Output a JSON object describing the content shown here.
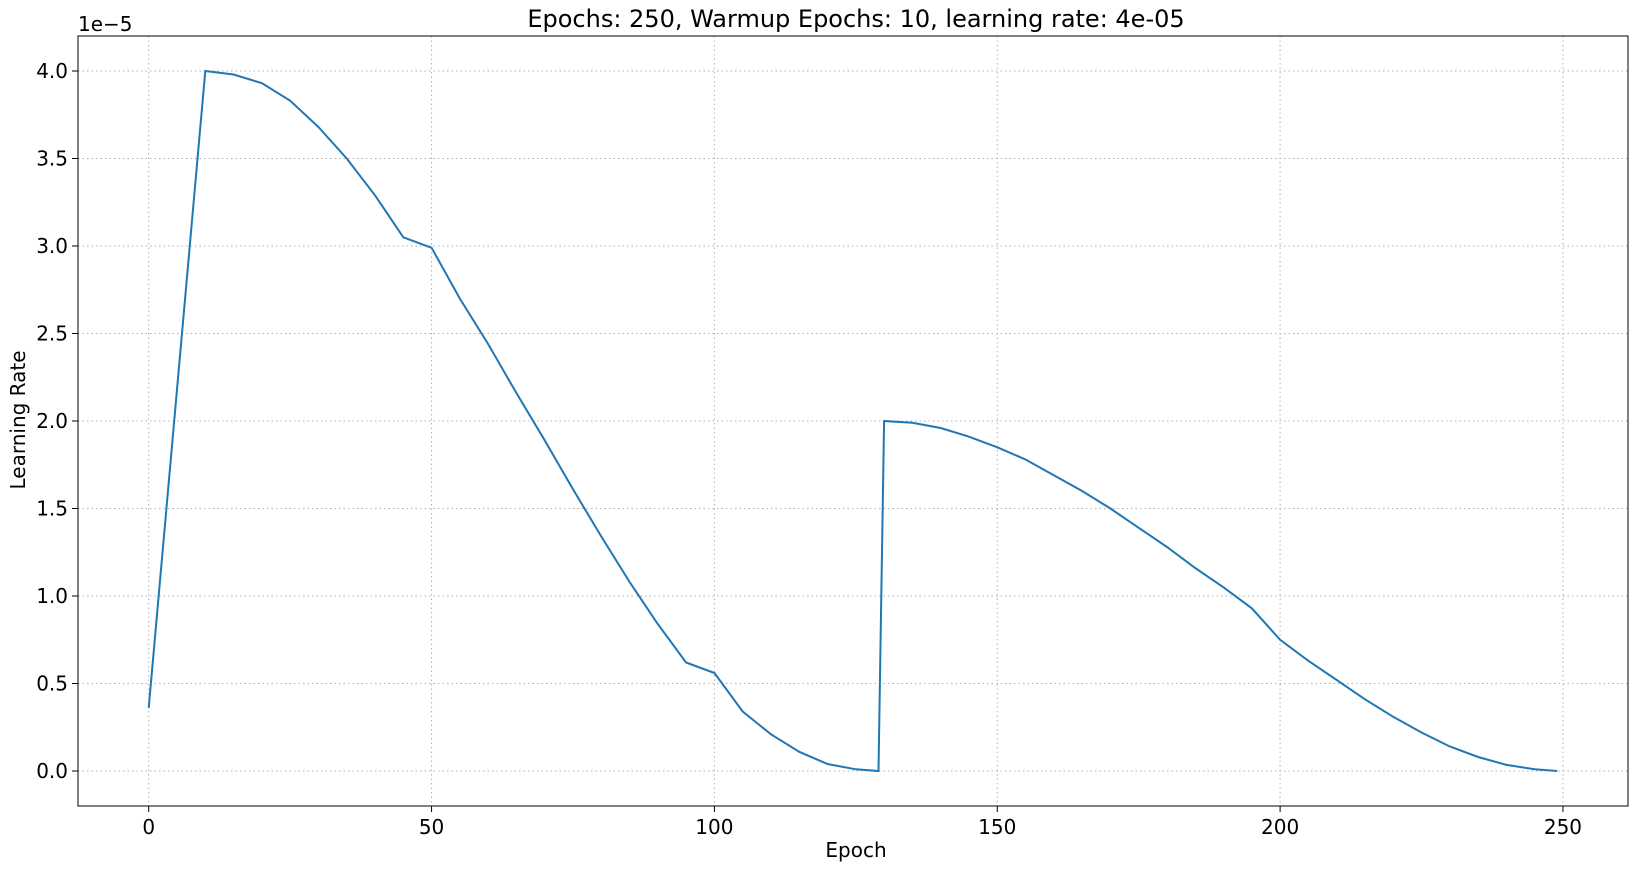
{
  "chart_data": {
    "type": "line",
    "title": "Epochs: 250, Warmup Epochs: 10, learning rate: 4e-05",
    "xlabel": "Epoch",
    "ylabel": "Learning Rate",
    "y_offset_label": "1e−5",
    "xlim": [
      -12.5,
      261.5
    ],
    "ylim": [
      -2e-06,
      4.2e-05
    ],
    "x_ticks": [
      0,
      50,
      100,
      150,
      200,
      250
    ],
    "x_tick_labels": [
      "0",
      "50",
      "100",
      "150",
      "200",
      "250"
    ],
    "y_ticks": [
      0,
      5e-06,
      1e-05,
      1.5e-05,
      2e-05,
      2.5e-05,
      3e-05,
      3.5e-05,
      4e-05
    ],
    "y_tick_labels": [
      "0.0",
      "0.5",
      "1.0",
      "1.5",
      "2.0",
      "2.5",
      "3.0",
      "3.5",
      "4.0"
    ],
    "grid": true,
    "line_color": "#1f77b4",
    "series": [
      {
        "points": [
          [
            0,
            3.6e-06
          ],
          [
            10,
            4e-05
          ],
          [
            15,
            3.98e-05
          ],
          [
            20,
            3.93e-05
          ],
          [
            25,
            3.83e-05
          ],
          [
            30,
            3.68e-05
          ],
          [
            35,
            3.5e-05
          ],
          [
            40,
            3.29e-05
          ],
          [
            45,
            3.05e-05
          ],
          [
            50,
            2.99e-05
          ],
          [
            55,
            2.7e-05
          ],
          [
            60,
            2.44e-05
          ],
          [
            65,
            2.16e-05
          ],
          [
            70,
            1.89e-05
          ],
          [
            75,
            1.61e-05
          ],
          [
            80,
            1.34e-05
          ],
          [
            85,
            1.08e-05
          ],
          [
            90,
            8.4e-06
          ],
          [
            95,
            6.2e-06
          ],
          [
            100,
            5.6e-06
          ],
          [
            105,
            3.4e-06
          ],
          [
            110,
            2.1e-06
          ],
          [
            115,
            1.1e-06
          ],
          [
            120,
            4e-07
          ],
          [
            125,
            1e-07
          ],
          [
            129,
            0.0
          ],
          [
            130,
            2e-05
          ],
          [
            135,
            1.99e-05
          ],
          [
            140,
            1.96e-05
          ],
          [
            145,
            1.91e-05
          ],
          [
            150,
            1.85e-05
          ],
          [
            155,
            1.78e-05
          ],
          [
            160,
            1.69e-05
          ],
          [
            165,
            1.6e-05
          ],
          [
            170,
            1.5e-05
          ],
          [
            175,
            1.39e-05
          ],
          [
            180,
            1.28e-05
          ],
          [
            185,
            1.16e-05
          ],
          [
            190,
            1.05e-05
          ],
          [
            195,
            9.3e-06
          ],
          [
            200,
            7.5e-06
          ],
          [
            205,
            6.3e-06
          ],
          [
            210,
            5.2e-06
          ],
          [
            215,
            4.1e-06
          ],
          [
            220,
            3.1e-06
          ],
          [
            225,
            2.2e-06
          ],
          [
            230,
            1.4e-06
          ],
          [
            235,
            8e-07
          ],
          [
            240,
            3.5e-07
          ],
          [
            245,
            1e-07
          ],
          [
            249,
            0.0
          ]
        ]
      }
    ]
  }
}
